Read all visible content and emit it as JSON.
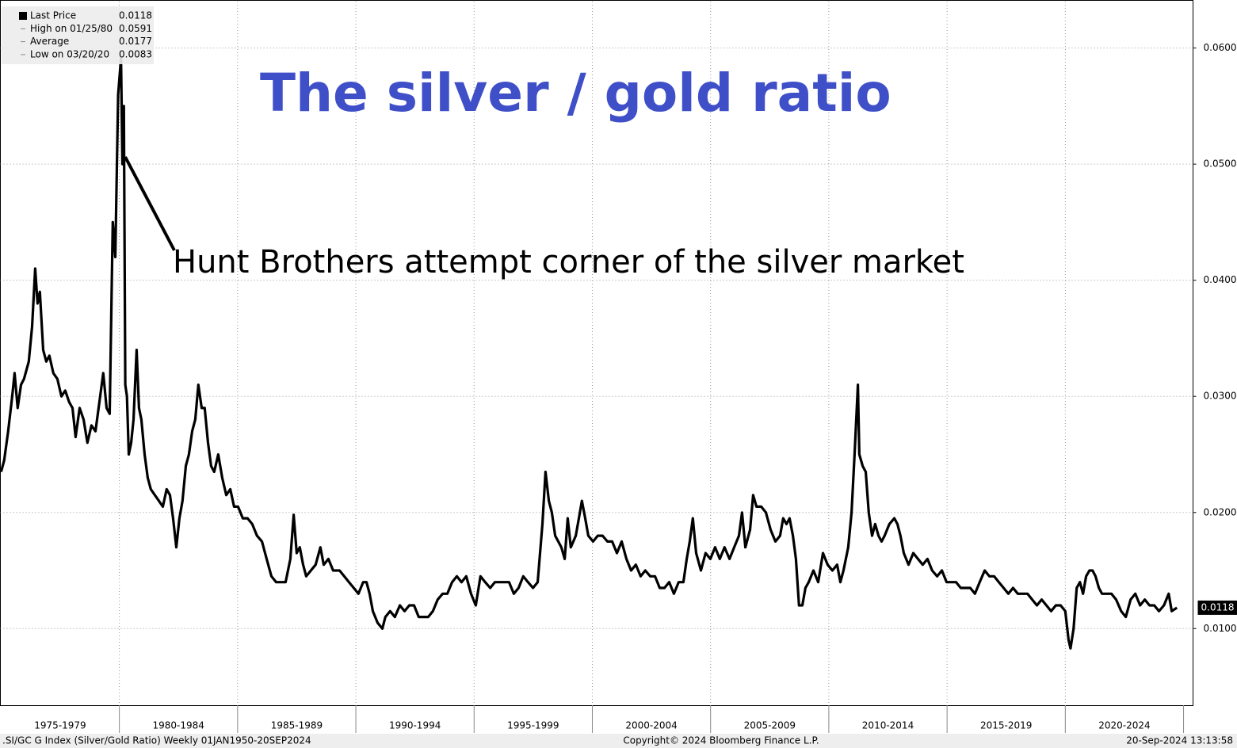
{
  "chart_data": {
    "type": "line",
    "title": "The silver / gold ratio",
    "annotation": "Hunt Brothers attempt corner of the silver market",
    "footer": {
      "left": ".SI/GC G Index (Silver/Gold Ratio)  Weekly 01JAN1950-20SEP2024",
      "center": "Copyright© 2024 Bloomberg Finance L.P.",
      "right": "20-Sep-2024 13:13:58"
    },
    "legend_stats": [
      {
        "label": "High on 01/25/80",
        "value": 0.0591
      },
      {
        "label": "Average",
        "value": 0.0177
      },
      {
        "label": "Low on 03/20/20",
        "value": 0.0083
      }
    ],
    "xlim": [
      1974.97,
      2025.4
    ],
    "ylim": [
      0.0034,
      0.064
    ],
    "yticks": [
      {
        "value": 0.01,
        "label": "0.0100"
      },
      {
        "value": 0.02,
        "label": "0.0200"
      },
      {
        "value": 0.03,
        "label": "0.0300"
      },
      {
        "value": 0.04,
        "label": "0.0400"
      },
      {
        "value": 0.05,
        "label": "0.0500"
      },
      {
        "value": 0.06,
        "label": "0.0600"
      }
    ],
    "periods": [
      {
        "label": "1975-1979",
        "start": 1975,
        "end": 1980
      },
      {
        "label": "1980-1984",
        "start": 1980,
        "end": 1985
      },
      {
        "label": "1985-1989",
        "start": 1985,
        "end": 1990
      },
      {
        "label": "1990-1994",
        "start": 1990,
        "end": 1995
      },
      {
        "label": "1995-1999",
        "start": 1995,
        "end": 2000
      },
      {
        "label": "2000-2004",
        "start": 2000,
        "end": 2005
      },
      {
        "label": "2005-2009",
        "start": 2005,
        "end": 2010
      },
      {
        "label": "2010-2014",
        "start": 2010,
        "end": 2015
      },
      {
        "label": "2015-2019",
        "start": 2015,
        "end": 2020
      },
      {
        "label": "2020-2024",
        "start": 2020,
        "end": 2025
      }
    ],
    "grid": true,
    "x": [
      1975.0,
      1975.13,
      1975.3,
      1975.47,
      1975.57,
      1975.7,
      1975.84,
      1975.97,
      1976.17,
      1976.31,
      1976.44,
      1976.54,
      1976.64,
      1976.78,
      1976.91,
      1977.04,
      1977.21,
      1977.38,
      1977.55,
      1977.71,
      1977.88,
      1978.02,
      1978.15,
      1978.32,
      1978.49,
      1978.65,
      1978.82,
      1978.99,
      1979.19,
      1979.32,
      1979.46,
      1979.59,
      1979.72,
      1979.83,
      1979.95,
      1980.07,
      1980.13,
      1980.19,
      1980.25,
      1980.32,
      1980.4,
      1980.5,
      1980.6,
      1980.73,
      1980.83,
      1980.93,
      1981.07,
      1981.2,
      1981.33,
      1981.5,
      1981.67,
      1981.84,
      1982.0,
      1982.14,
      1982.27,
      1982.41,
      1982.54,
      1982.67,
      1982.81,
      1982.94,
      1983.08,
      1983.21,
      1983.34,
      1983.48,
      1983.61,
      1983.75,
      1983.88,
      1984.01,
      1984.18,
      1984.35,
      1984.52,
      1984.69,
      1984.85,
      1985.02,
      1985.22,
      1985.42,
      1985.62,
      1985.82,
      1986.03,
      1986.23,
      1986.43,
      1986.63,
      1986.83,
      1987.03,
      1987.23,
      1987.37,
      1987.5,
      1987.63,
      1987.77,
      1987.9,
      1988.1,
      1988.3,
      1988.5,
      1988.64,
      1988.84,
      1989.04,
      1989.31,
      1989.51,
      1989.71,
      1989.91,
      1990.11,
      1990.31,
      1990.45,
      1990.58,
      1990.72,
      1990.92,
      1991.12,
      1991.25,
      1991.45,
      1991.65,
      1991.86,
      1992.06,
      1992.26,
      1992.46,
      1992.66,
      1992.86,
      1993.06,
      1993.26,
      1993.46,
      1993.67,
      1993.87,
      1994.07,
      1994.27,
      1994.47,
      1994.67,
      1994.87,
      1995.07,
      1995.27,
      1995.47,
      1995.68,
      1995.88,
      1996.08,
      1996.28,
      1996.48,
      1996.68,
      1996.88,
      1997.08,
      1997.28,
      1997.49,
      1997.69,
      1997.89,
      1998.02,
      1998.16,
      1998.29,
      1998.43,
      1998.56,
      1998.69,
      1998.83,
      1998.96,
      1999.09,
      1999.3,
      1999.43,
      1999.56,
      1999.7,
      1999.83,
      2000.03,
      2000.23,
      2000.43,
      2000.64,
      2000.84,
      2001.04,
      2001.24,
      2001.44,
      2001.64,
      2001.84,
      2002.04,
      2002.24,
      2002.45,
      2002.65,
      2002.85,
      2003.05,
      2003.25,
      2003.45,
      2003.65,
      2003.85,
      2003.99,
      2004.12,
      2004.25,
      2004.39,
      2004.59,
      2004.79,
      2004.99,
      2005.19,
      2005.39,
      2005.59,
      2005.8,
      2006.0,
      2006.2,
      2006.33,
      2006.47,
      2006.67,
      2006.8,
      2006.94,
      2007.14,
      2007.34,
      2007.54,
      2007.74,
      2007.94,
      2008.07,
      2008.21,
      2008.34,
      2008.48,
      2008.61,
      2008.74,
      2008.88,
      2009.01,
      2009.15,
      2009.35,
      2009.55,
      2009.75,
      2009.95,
      2010.15,
      2010.35,
      2010.49,
      2010.62,
      2010.82,
      2010.96,
      2011.09,
      2011.23,
      2011.29,
      2011.43,
      2011.56,
      2011.69,
      2011.83,
      2011.96,
      2012.1,
      2012.23,
      2012.36,
      2012.56,
      2012.77,
      2012.9,
      2013.03,
      2013.17,
      2013.37,
      2013.57,
      2013.77,
      2013.97,
      2014.17,
      2014.37,
      2014.58,
      2014.78,
      2014.98,
      2015.18,
      2015.38,
      2015.58,
      2015.78,
      2015.98,
      2016.18,
      2016.38,
      2016.59,
      2016.79,
      2016.99,
      2017.19,
      2017.39,
      2017.59,
      2017.79,
      2017.99,
      2018.19,
      2018.4,
      2018.6,
      2018.8,
      2019.0,
      2019.2,
      2019.4,
      2019.6,
      2019.8,
      2020.0,
      2020.14,
      2020.22,
      2020.35,
      2020.48,
      2020.62,
      2020.75,
      2020.88,
      2021.02,
      2021.15,
      2021.28,
      2021.42,
      2021.55,
      2021.75,
      2021.95,
      2022.15,
      2022.36,
      2022.56,
      2022.76,
      2022.96,
      2023.16,
      2023.36,
      2023.56,
      2023.76,
      2023.96,
      2024.17,
      2024.37,
      2024.5,
      2024.72
    ],
    "series": [
      {
        "name": "Last Price",
        "color": "#000000",
        "values": [
          0.0235,
          0.0245,
          0.027,
          0.03,
          0.032,
          0.029,
          0.031,
          0.0315,
          0.033,
          0.036,
          0.041,
          0.038,
          0.039,
          0.034,
          0.033,
          0.0335,
          0.032,
          0.0315,
          0.03,
          0.0305,
          0.0295,
          0.029,
          0.0265,
          0.029,
          0.028,
          0.026,
          0.0275,
          0.027,
          0.03,
          0.032,
          0.029,
          0.0285,
          0.045,
          0.042,
          0.056,
          0.0591,
          0.05,
          0.055,
          0.031,
          0.03,
          0.025,
          0.026,
          0.028,
          0.034,
          0.029,
          0.028,
          0.025,
          0.023,
          0.022,
          0.0215,
          0.021,
          0.0205,
          0.022,
          0.0215,
          0.0195,
          0.017,
          0.0195,
          0.021,
          0.024,
          0.025,
          0.027,
          0.028,
          0.031,
          0.029,
          0.029,
          0.026,
          0.024,
          0.0235,
          0.025,
          0.023,
          0.0215,
          0.022,
          0.0205,
          0.0205,
          0.0195,
          0.0195,
          0.019,
          0.018,
          0.0175,
          0.016,
          0.0145,
          0.014,
          0.014,
          0.014,
          0.016,
          0.0198,
          0.0165,
          0.017,
          0.0155,
          0.0145,
          0.015,
          0.0155,
          0.017,
          0.0155,
          0.016,
          0.015,
          0.015,
          0.0145,
          0.014,
          0.0135,
          0.013,
          0.014,
          0.014,
          0.013,
          0.0115,
          0.0105,
          0.01,
          0.011,
          0.0115,
          0.011,
          0.012,
          0.0115,
          0.012,
          0.012,
          0.011,
          0.011,
          0.011,
          0.0115,
          0.0125,
          0.013,
          0.013,
          0.014,
          0.0145,
          0.014,
          0.0145,
          0.013,
          0.012,
          0.0145,
          0.014,
          0.0135,
          0.014,
          0.014,
          0.014,
          0.014,
          0.013,
          0.0135,
          0.0145,
          0.014,
          0.0135,
          0.014,
          0.019,
          0.0235,
          0.021,
          0.02,
          0.018,
          0.0175,
          0.017,
          0.016,
          0.0195,
          0.017,
          0.018,
          0.0195,
          0.021,
          0.0195,
          0.018,
          0.0175,
          0.018,
          0.018,
          0.0175,
          0.0175,
          0.0165,
          0.0175,
          0.016,
          0.015,
          0.0155,
          0.0145,
          0.015,
          0.0145,
          0.0145,
          0.0135,
          0.0135,
          0.014,
          0.013,
          0.014,
          0.014,
          0.016,
          0.0175,
          0.0195,
          0.0165,
          0.015,
          0.0165,
          0.016,
          0.017,
          0.016,
          0.017,
          0.016,
          0.017,
          0.018,
          0.02,
          0.017,
          0.0185,
          0.0215,
          0.0205,
          0.0205,
          0.02,
          0.0185,
          0.0175,
          0.018,
          0.0195,
          0.019,
          0.0195,
          0.018,
          0.016,
          0.012,
          0.012,
          0.0135,
          0.014,
          0.015,
          0.014,
          0.0165,
          0.0155,
          0.015,
          0.0155,
          0.014,
          0.015,
          0.017,
          0.02,
          0.025,
          0.031,
          0.025,
          0.024,
          0.0235,
          0.02,
          0.018,
          0.019,
          0.018,
          0.0175,
          0.018,
          0.019,
          0.0195,
          0.019,
          0.018,
          0.0165,
          0.0155,
          0.0165,
          0.016,
          0.0155,
          0.016,
          0.015,
          0.0145,
          0.015,
          0.014,
          0.014,
          0.014,
          0.0135,
          0.0135,
          0.0135,
          0.013,
          0.014,
          0.015,
          0.0145,
          0.0145,
          0.014,
          0.0135,
          0.013,
          0.0135,
          0.013,
          0.013,
          0.013,
          0.0125,
          0.012,
          0.0125,
          0.012,
          0.0115,
          0.012,
          0.012,
          0.0115,
          0.009,
          0.0083,
          0.01,
          0.0135,
          0.014,
          0.013,
          0.0145,
          0.015,
          0.015,
          0.0145,
          0.0135,
          0.013,
          0.013,
          0.013,
          0.0125,
          0.0115,
          0.011,
          0.0125,
          0.013,
          0.012,
          0.0125,
          0.012,
          0.012,
          0.0115,
          0.012,
          0.013,
          0.0115,
          0.0118
        ]
      }
    ]
  }
}
